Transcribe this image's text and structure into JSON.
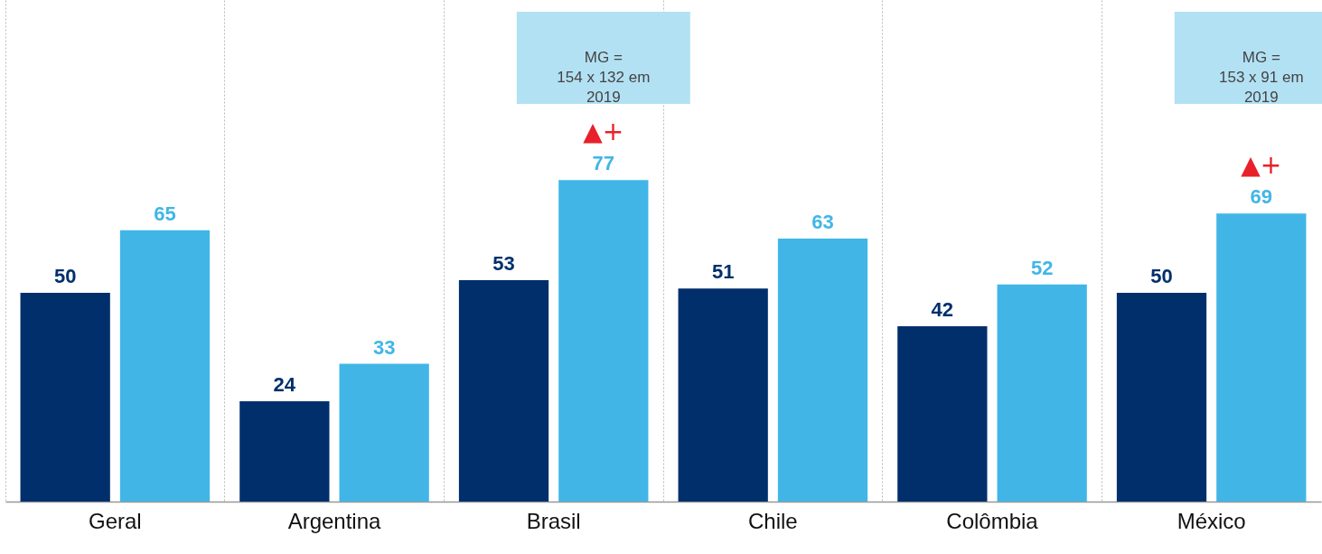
{
  "chart_data": {
    "type": "bar",
    "categories": [
      "Geral",
      "Argentina",
      "Brasil",
      "Chile",
      "Colômbia",
      "México"
    ],
    "series": [
      {
        "color": "#002f6c",
        "values": [
          50,
          24,
          53,
          51,
          42,
          50
        ]
      },
      {
        "color": "#41b6e6",
        "values": [
          65,
          33,
          77,
          63,
          52,
          69
        ]
      }
    ],
    "data_labels": true,
    "grid": "x",
    "annotations": [
      "MG =\n154 x 132 em\n2019",
      "▲+",
      "MG =\n153 x 91 em\n2019",
      "▲+"
    ]
  }
}
